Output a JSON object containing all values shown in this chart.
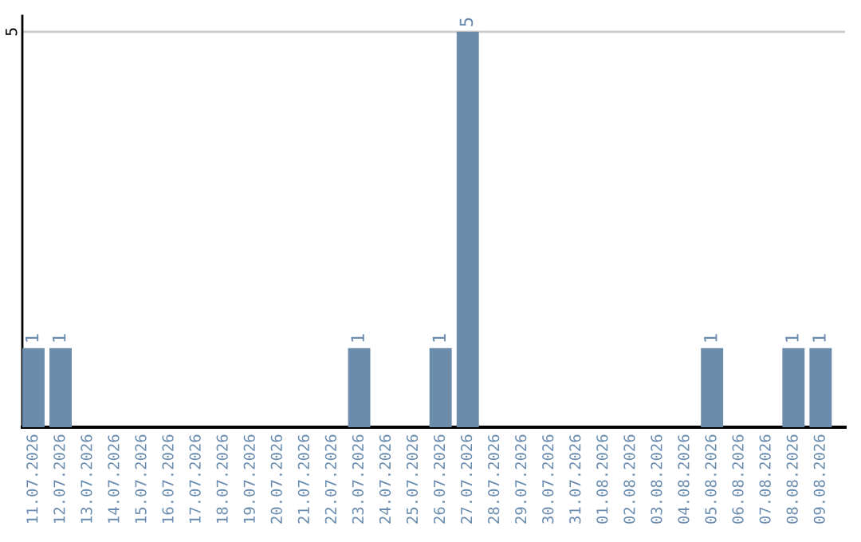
{
  "chart_data": {
    "type": "bar",
    "categories": [
      "11.07.2026",
      "12.07.2026",
      "13.07.2026",
      "14.07.2026",
      "15.07.2026",
      "16.07.2026",
      "17.07.2026",
      "18.07.2026",
      "19.07.2026",
      "20.07.2026",
      "21.07.2026",
      "22.07.2026",
      "23.07.2026",
      "24.07.2026",
      "25.07.2026",
      "26.07.2026",
      "27.07.2026",
      "28.07.2026",
      "29.07.2026",
      "30.07.2026",
      "31.07.2026",
      "01.08.2026",
      "02.08.2026",
      "03.08.2026",
      "04.08.2026",
      "05.08.2026",
      "06.08.2026",
      "07.08.2026",
      "08.08.2026",
      "09.08.2026"
    ],
    "values": [
      1,
      1,
      0,
      0,
      0,
      0,
      0,
      0,
      0,
      0,
      0,
      0,
      1,
      0,
      0,
      1,
      5,
      0,
      0,
      0,
      0,
      0,
      0,
      0,
      0,
      1,
      0,
      0,
      1,
      1
    ],
    "value_labels": [
      "1",
      "1",
      null,
      null,
      null,
      null,
      null,
      null,
      null,
      null,
      null,
      null,
      "1",
      null,
      null,
      "1",
      "5",
      null,
      null,
      null,
      null,
      null,
      null,
      null,
      null,
      "1",
      null,
      null,
      "1",
      "1"
    ],
    "color": "#6b8cab",
    "ylim": [
      0,
      5.2
    ],
    "yticks": [
      5
    ],
    "grid": "y"
  }
}
